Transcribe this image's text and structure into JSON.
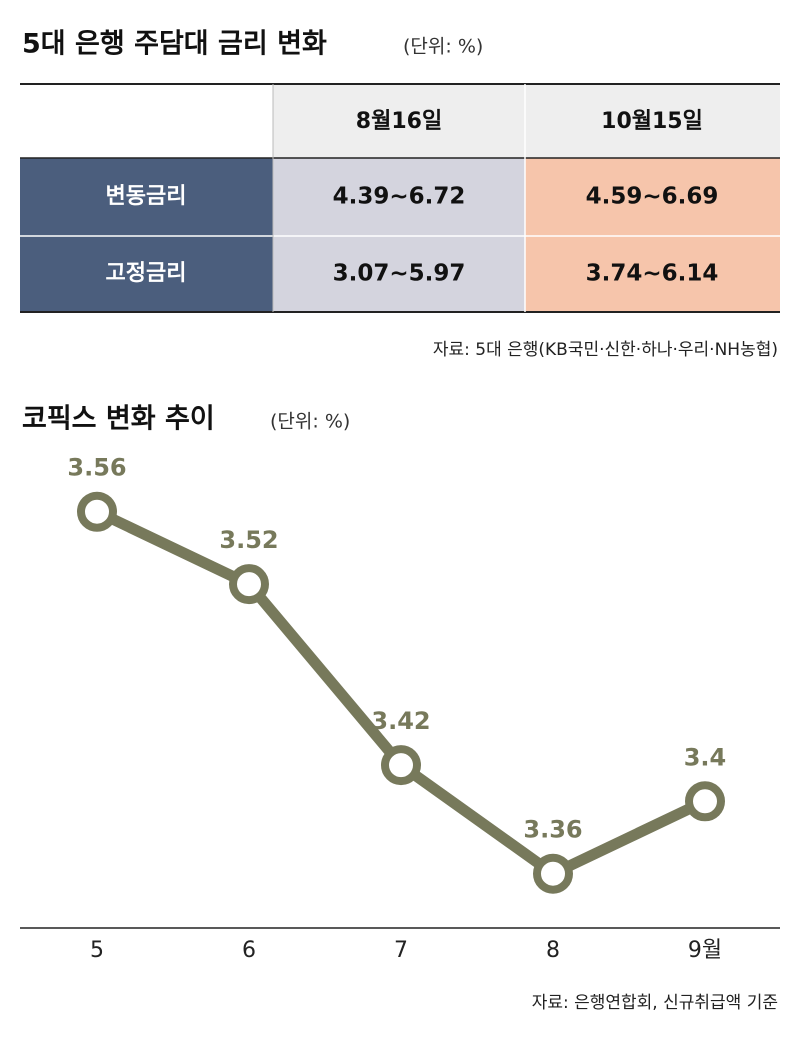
{
  "table": {
    "title": "5대 은행 주담대 금리 변화",
    "unit": "(단위: %)",
    "columns": [
      "8월16일",
      "10월15일"
    ],
    "rows": [
      [
        "변동금리",
        "4.39~6.72",
        "4.59~6.69"
      ],
      [
        "고정금리",
        "3.07~5.97",
        "3.74~6.14"
      ]
    ],
    "source": "자료: 5대 은행(KB국민·신한·하나·우리·NH농협)"
  },
  "chart_data": {
    "type": "line",
    "title": "코픽스 변화 추이",
    "unit": "(단위: %)",
    "categories": [
      "5",
      "6",
      "7",
      "8",
      "9월"
    ],
    "values": [
      3.56,
      3.52,
      3.42,
      3.36,
      3.4
    ],
    "color": "#77795b",
    "ylim": [
      3.33,
      3.58
    ],
    "source": "자료: 은행연합회, 신규취급액 기준"
  }
}
